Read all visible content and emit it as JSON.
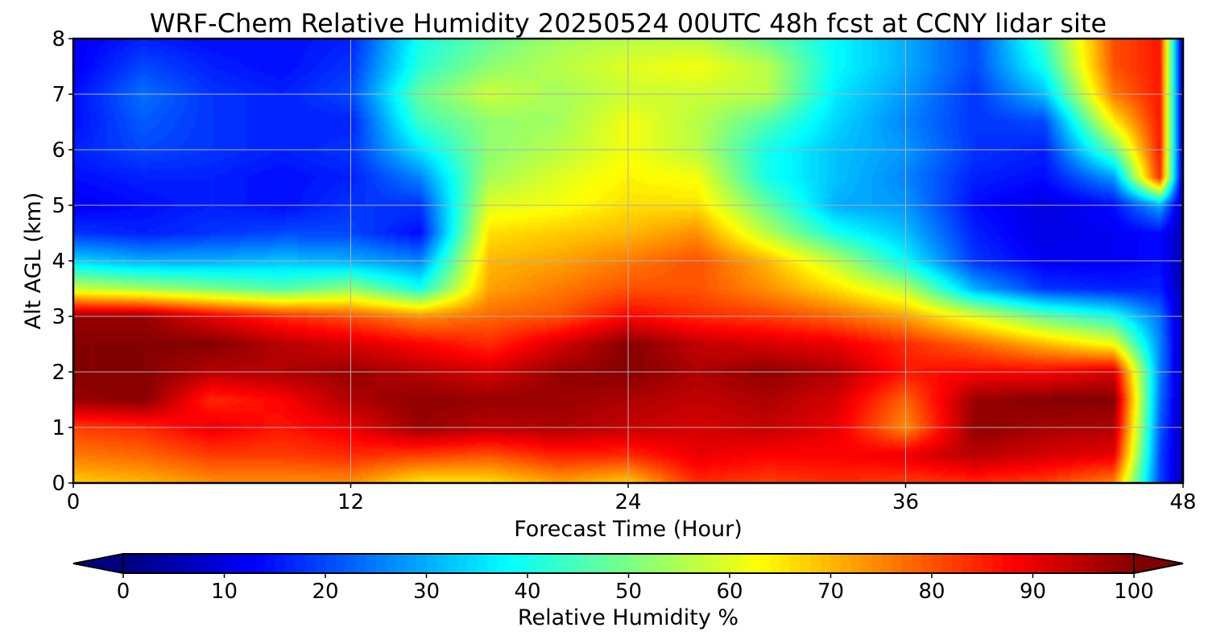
{
  "chart_data": {
    "type": "heatmap",
    "title": "WRF-Chem Relative Humidity 20250524 00UTC 48h fcst at CCNY lidar site",
    "xlabel": "Forecast Time (Hour)",
    "ylabel": "Alt AGL (km)",
    "xlim": [
      0,
      48
    ],
    "ylim": [
      0,
      8
    ],
    "x_ticks": [
      0,
      12,
      24,
      36,
      48
    ],
    "y_ticks": [
      0,
      1,
      2,
      3,
      4,
      5,
      6,
      7,
      8
    ],
    "grid": true,
    "colormap": "jet",
    "colorbar": {
      "label": "Relative Humidity %",
      "orientation": "horizontal",
      "placement": "bottom",
      "extend": "both",
      "range": [
        0,
        100
      ],
      "ticks": [
        0,
        10,
        20,
        30,
        40,
        50,
        60,
        70,
        80,
        90,
        100
      ]
    },
    "x": [
      0,
      3,
      6,
      9,
      12,
      15,
      18,
      21,
      24,
      27,
      30,
      33,
      36,
      39,
      42,
      45,
      47,
      48
    ],
    "y": [
      0,
      0.5,
      1,
      1.5,
      2,
      2.5,
      3,
      3.5,
      4,
      4.5,
      5,
      5.5,
      6,
      6.5,
      7,
      7.5,
      8
    ],
    "z": [
      [
        68,
        70,
        74,
        74,
        74,
        65,
        66,
        72,
        68,
        84,
        82,
        84,
        82,
        84,
        82,
        75,
        20,
        5
      ],
      [
        76,
        78,
        82,
        82,
        84,
        82,
        80,
        85,
        84,
        90,
        88,
        88,
        90,
        95,
        92,
        90,
        20,
        5
      ],
      [
        82,
        84,
        90,
        86,
        90,
        98,
        95,
        96,
        94,
        92,
        94,
        90,
        74,
        99,
        97,
        96,
        22,
        5
      ],
      [
        98,
        100,
        84,
        88,
        96,
        99,
        98,
        98,
        96,
        94,
        96,
        92,
        78,
        98,
        100,
        100,
        24,
        5
      ],
      [
        100,
        100,
        95,
        96,
        98,
        95,
        92,
        98,
        100,
        96,
        99,
        96,
        86,
        88,
        88,
        92,
        26,
        5
      ],
      [
        100,
        100,
        100,
        95,
        92,
        88,
        84,
        92,
        100,
        94,
        92,
        90,
        84,
        78,
        70,
        62,
        26,
        5
      ],
      [
        98,
        98,
        90,
        84,
        80,
        74,
        78,
        80,
        88,
        84,
        82,
        78,
        72,
        60,
        48,
        40,
        24,
        5
      ],
      [
        58,
        54,
        50,
        46,
        52,
        40,
        72,
        76,
        80,
        80,
        74,
        66,
        56,
        30,
        18,
        16,
        16,
        5
      ],
      [
        34,
        30,
        30,
        32,
        30,
        26,
        70,
        72,
        76,
        80,
        70,
        56,
        38,
        18,
        12,
        12,
        14,
        5
      ],
      [
        18,
        16,
        18,
        20,
        20,
        14,
        66,
        68,
        70,
        74,
        56,
        40,
        32,
        16,
        10,
        12,
        14,
        5
      ],
      [
        12,
        14,
        16,
        14,
        18,
        18,
        60,
        62,
        66,
        66,
        48,
        30,
        28,
        14,
        10,
        14,
        30,
        5
      ],
      [
        14,
        16,
        16,
        14,
        16,
        26,
        54,
        60,
        64,
        62,
        40,
        32,
        26,
        16,
        14,
        28,
        84,
        5
      ],
      [
        16,
        20,
        18,
        16,
        18,
        36,
        52,
        56,
        62,
        56,
        40,
        32,
        28,
        18,
        16,
        48,
        86,
        5
      ],
      [
        14,
        22,
        18,
        16,
        16,
        44,
        52,
        54,
        62,
        56,
        46,
        34,
        26,
        18,
        20,
        64,
        86,
        5
      ],
      [
        14,
        24,
        18,
        16,
        20,
        48,
        58,
        54,
        58,
        58,
        56,
        36,
        28,
        18,
        32,
        76,
        86,
        5
      ],
      [
        12,
        20,
        16,
        14,
        18,
        42,
        52,
        56,
        60,
        62,
        56,
        38,
        30,
        20,
        40,
        80,
        86,
        5
      ],
      [
        12,
        16,
        14,
        14,
        16,
        40,
        48,
        54,
        56,
        56,
        48,
        38,
        30,
        20,
        44,
        80,
        86,
        5
      ]
    ]
  }
}
